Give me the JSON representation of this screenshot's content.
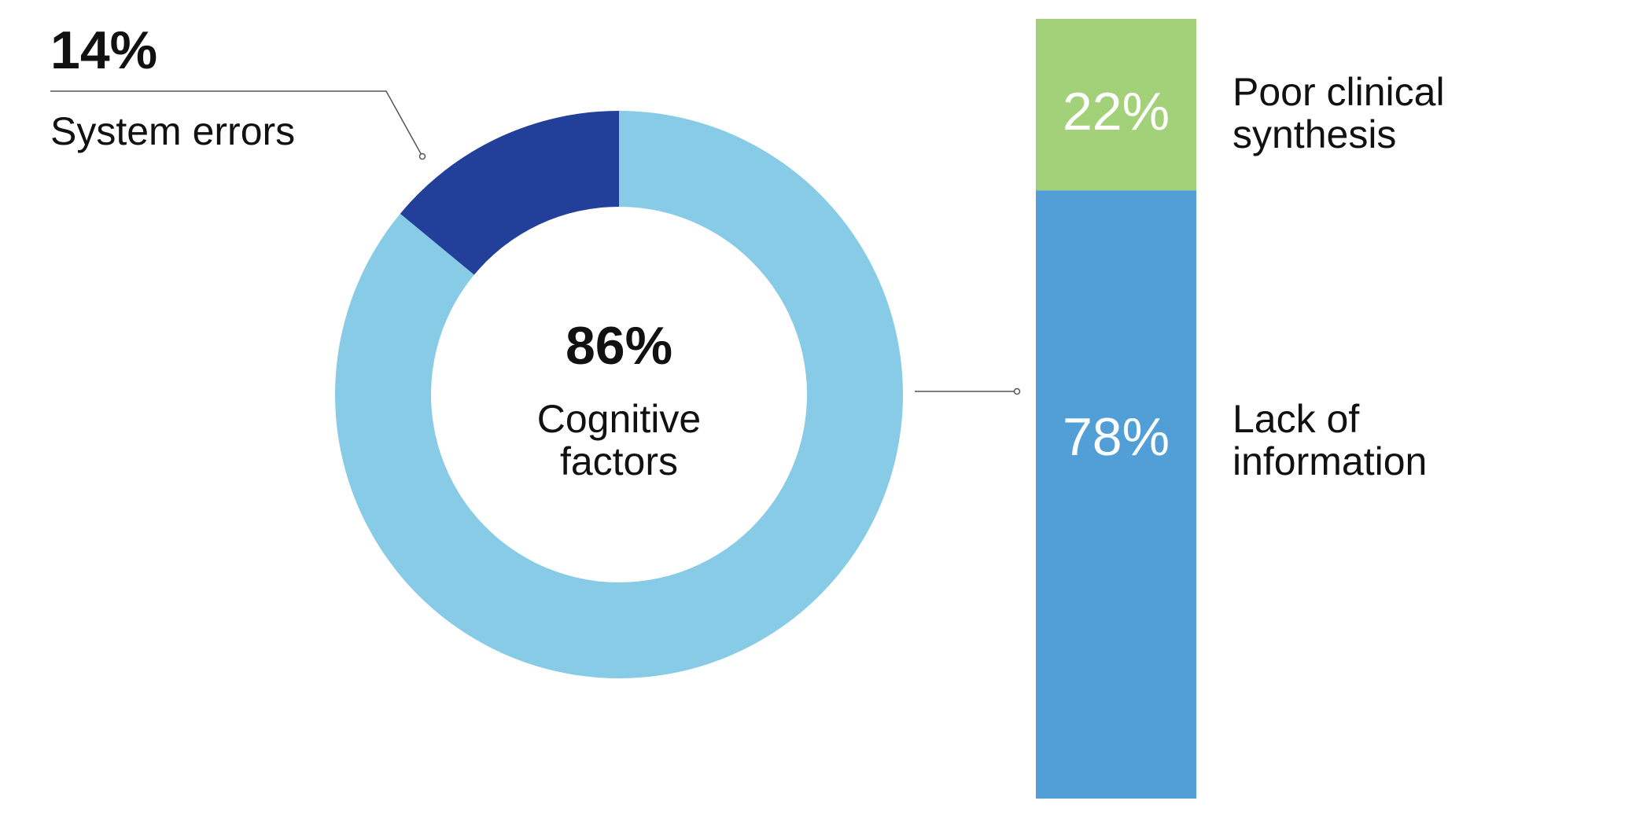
{
  "chart_data": [
    {
      "type": "pie",
      "categories": [
        "System errors",
        "Cognitive factors"
      ],
      "values": [
        14,
        86
      ],
      "value_labels": [
        "14%",
        "86%"
      ],
      "colors": [
        "#22409a",
        "#87cbe6"
      ]
    },
    {
      "type": "bar",
      "series": [
        {
          "name": "Lack of information",
          "color": "#519fd6",
          "values": [
            78
          ],
          "value_labels": [
            "78%"
          ]
        },
        {
          "name": "Poor clinical synthesis",
          "color": "#a3d17a",
          "values": [
            22
          ],
          "value_labels": [
            "22%"
          ]
        }
      ]
    }
  ]
}
